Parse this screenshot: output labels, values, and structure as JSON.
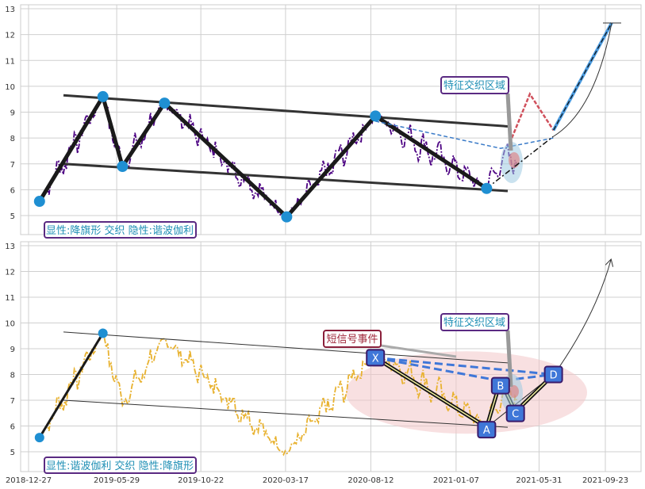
{
  "chart_data": [
    {
      "type": "line",
      "panel": "top",
      "ylim": [
        4.3,
        13.2
      ],
      "yticks": [
        5,
        6,
        7,
        8,
        9,
        10,
        11,
        12,
        13
      ],
      "series_color": "#4b0082",
      "pattern_label": "显性:降旗形 交织 隐性:谐波伽利",
      "region_label": "特征交织区域",
      "pivots": [
        {
          "date": "2019-01-15",
          "value": 5.55
        },
        {
          "date": "2019-05-05",
          "value": 9.6
        },
        {
          "date": "2019-06-08",
          "value": 6.9
        },
        {
          "date": "2019-08-20",
          "value": 9.35
        },
        {
          "date": "2020-03-19",
          "value": 4.95
        },
        {
          "date": "2020-08-20",
          "value": 8.85
        },
        {
          "date": "2021-03-01",
          "value": 6.05
        }
      ]
    },
    {
      "type": "line",
      "panel": "bottom",
      "ylim": [
        4.3,
        13.2
      ],
      "yticks": [
        5,
        6,
        7,
        8,
        9,
        10,
        11,
        12,
        13
      ],
      "series_color": "#e8b230",
      "pattern_label": "显性:谐波伽利 交织 隐性:降旗形",
      "region_label": "特征交织区域",
      "event_label": "短信号事件",
      "harmonic_points": [
        {
          "label": "X",
          "date": "2020-08-20",
          "value": 8.65
        },
        {
          "label": "A",
          "date": "2021-03-01",
          "value": 5.95
        },
        {
          "label": "B",
          "date": "2021-03-25",
          "value": 7.75
        },
        {
          "label": "C",
          "date": "2021-04-20",
          "value": 6.55
        },
        {
          "label": "D",
          "date": "2021-06-25",
          "value": 8.0
        }
      ]
    }
  ],
  "x_axis": {
    "tick_labels": [
      "2018-12-27",
      "2019-05-29",
      "2019-10-22",
      "2020-03-17",
      "2020-08-12",
      "2021-01-07",
      "2021-05-31",
      "2021-09-23"
    ]
  }
}
